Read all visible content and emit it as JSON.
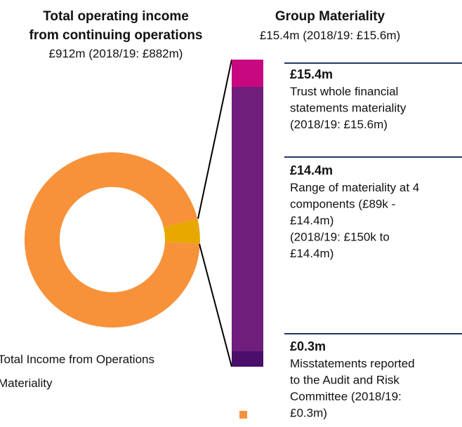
{
  "income_header": {
    "title_lines": [
      "Total operating income",
      "from continuing operations"
    ],
    "value": "£912m (2018/19: £882m)"
  },
  "materiality_header": {
    "title": "Group Materiality",
    "value": "£15.4m (2018/19: £15.6m)"
  },
  "blocks": [
    {
      "amount": "£15.4m",
      "lines": [
        "Trust whole financial",
        "statements materiality",
        "(2018/19: £15.6m)"
      ]
    },
    {
      "amount": "£14.4m",
      "lines": [
        "Range of materiality at 4",
        "components (£89k -",
        "£14.4m)",
        "(2018/19: £150k to",
        "£14.4m)"
      ]
    },
    {
      "amount": "£0.3m",
      "lines": [
        "Misstatements reported",
        "to the Audit and Risk",
        "Committee (2018/19:",
        "£0.3m)"
      ]
    }
  ],
  "legend": [
    "Total Income from Operations",
    "Materiality"
  ]
}
